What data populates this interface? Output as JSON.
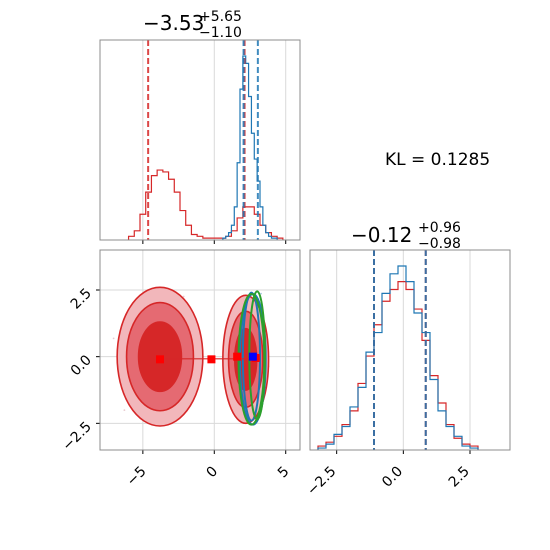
{
  "chart_data": [
    {
      "type": "histogram",
      "panel": "marginal-x",
      "title_main": "−3.53",
      "title_sup": "+5.65",
      "title_sub": "−1.10",
      "xlim": [
        -8,
        6
      ],
      "x_ticks": [
        -5,
        0,
        5
      ],
      "grid": true,
      "series": [
        {
          "color": "#d62728",
          "bins": [
            -6.0,
            -5.6,
            -5.2,
            -4.8,
            -4.4,
            -4.0,
            -3.6,
            -3.2,
            -2.8,
            -2.4,
            -2.0,
            -1.6,
            -1.2,
            -0.8,
            -0.4,
            0.0,
            0.4,
            0.8,
            1.2,
            1.6,
            2.0,
            2.4,
            2.8,
            3.2,
            3.6,
            4.0,
            4.4,
            4.8
          ],
          "counts": [
            0.02,
            0.05,
            0.14,
            0.26,
            0.35,
            0.38,
            0.37,
            0.33,
            0.26,
            0.16,
            0.08,
            0.03,
            0.02,
            0.01,
            0.01,
            0.01,
            0.01,
            0.02,
            0.05,
            0.12,
            0.18,
            0.18,
            0.14,
            0.08,
            0.04,
            0.02,
            0.01
          ]
        },
        {
          "color": "#1f77b4",
          "bins": [
            0.6,
            0.8,
            1.0,
            1.2,
            1.4,
            1.6,
            1.8,
            2.0,
            2.2,
            2.4,
            2.6,
            2.8,
            3.0,
            3.2,
            3.4,
            3.6,
            3.8,
            4.0,
            4.2,
            4.4
          ],
          "counts": [
            0.01,
            0.02,
            0.04,
            0.08,
            0.18,
            0.42,
            0.82,
            1.0,
            0.96,
            0.78,
            0.58,
            0.44,
            0.32,
            0.18,
            0.08,
            0.04,
            0.02,
            0.01,
            0.01
          ]
        }
      ],
      "vlines": [
        {
          "x": -4.63,
          "color": "#d62728"
        },
        {
          "x": 2.12,
          "color": "#d62728"
        },
        {
          "x": 2.05,
          "color": "#1f77b4"
        },
        {
          "x": 3.05,
          "color": "#1f77b4"
        }
      ]
    },
    {
      "type": "scatter",
      "panel": "joint",
      "xlim": [
        -8,
        6
      ],
      "ylim": [
        -3.5,
        4
      ],
      "x_ticks": [
        -5,
        0,
        5
      ],
      "y_ticks": [
        -2.5,
        0.0,
        2.5
      ],
      "y_tick_labels": [
        "−2.5",
        "0.0",
        "2.5"
      ],
      "grid": true,
      "markers_red": [
        {
          "x": -3.8,
          "y": -0.1
        },
        {
          "x": -0.2,
          "y": -0.1
        },
        {
          "x": 1.6,
          "y": 0.0
        },
        {
          "x": 2.9,
          "y": -0.05
        }
      ],
      "marker_blue": {
        "x": 2.7,
        "y": 0.0
      },
      "blobs": [
        {
          "cx": -3.8,
          "cy": 0.0,
          "rx": 3.0,
          "ry": 2.6,
          "color": "#d62728"
        },
        {
          "cx": 2.2,
          "cy": -0.1,
          "rx": 1.6,
          "ry": 2.4,
          "color": "#d62728"
        }
      ],
      "ellipses": [
        {
          "cx": 2.6,
          "cy": 0.0,
          "rx": 0.6,
          "ry": 2.4,
          "color": "#1f77b4"
        },
        {
          "cx": 2.7,
          "cy": -0.1,
          "rx": 0.9,
          "ry": 2.45,
          "color": "#1f77b4"
        },
        {
          "cx": 3.0,
          "cy": 0.05,
          "rx": 0.55,
          "ry": 2.4,
          "color": "#2ca02c"
        },
        {
          "cx": 2.6,
          "cy": -0.1,
          "rx": 0.9,
          "ry": 2.45,
          "color": "#2ca02c"
        }
      ]
    },
    {
      "type": "histogram",
      "panel": "marginal-y",
      "title_main": "−0.12",
      "title_sup": "+0.96",
      "title_sub": "−0.98",
      "xlim": [
        -3.5,
        4
      ],
      "x_ticks": [
        -2.5,
        0.0,
        2.5
      ],
      "x_tick_labels": [
        "−2.5",
        "0.0",
        "2.5"
      ],
      "grid": true,
      "series": [
        {
          "color": "#d62728",
          "bins": [
            -3.2,
            -2.9,
            -2.6,
            -2.3,
            -2.0,
            -1.7,
            -1.4,
            -1.1,
            -0.8,
            -0.5,
            -0.2,
            0.1,
            0.4,
            0.7,
            1.0,
            1.3,
            1.6,
            1.9,
            2.2,
            2.5,
            2.8
          ],
          "counts": [
            0.02,
            0.04,
            0.07,
            0.13,
            0.2,
            0.34,
            0.48,
            0.64,
            0.76,
            0.82,
            0.86,
            0.82,
            0.72,
            0.56,
            0.38,
            0.24,
            0.13,
            0.06,
            0.03,
            0.02
          ]
        },
        {
          "color": "#1f77b4",
          "bins": [
            -3.2,
            -2.9,
            -2.6,
            -2.3,
            -2.0,
            -1.7,
            -1.4,
            -1.1,
            -0.8,
            -0.5,
            -0.2,
            0.1,
            0.4,
            0.7,
            1.0,
            1.3,
            1.6,
            1.9,
            2.2,
            2.5,
            2.8
          ],
          "counts": [
            0.01,
            0.03,
            0.08,
            0.12,
            0.22,
            0.32,
            0.5,
            0.6,
            0.8,
            0.9,
            0.94,
            0.86,
            0.7,
            0.6,
            0.36,
            0.2,
            0.12,
            0.07,
            0.02,
            0.01
          ]
        }
      ],
      "vlines": [
        {
          "x": -1.1,
          "color": "#d62728"
        },
        {
          "x": 0.84,
          "color": "#d62728"
        },
        {
          "x": -1.1,
          "color": "#1f77b4"
        },
        {
          "x": 0.84,
          "color": "#1f77b4"
        }
      ]
    }
  ],
  "kl_text": "KL = 0.1285"
}
